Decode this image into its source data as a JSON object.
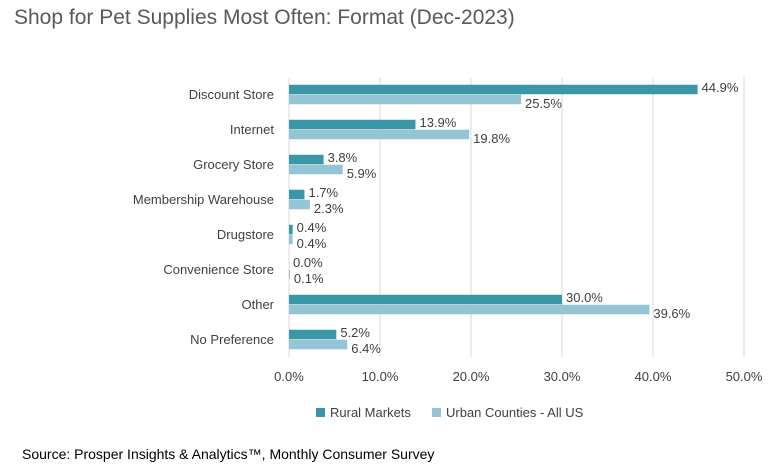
{
  "title": "Shop for Pet Supplies Most Often: Format (Dec-2023)",
  "source": "Source: Prosper Insights & Analytics™, Monthly Consumer Survey",
  "chart_data": {
    "type": "bar",
    "orientation": "horizontal",
    "title": "Shop for Pet Supplies Most Often: Format (Dec-2023)",
    "categories": [
      "Discount Store",
      "Internet",
      "Grocery Store",
      "Membership Warehouse",
      "Drugstore",
      "Convenience Store",
      "Other",
      "No Preference"
    ],
    "series": [
      {
        "name": "Rural Markets",
        "color": "#3a97a8",
        "values": [
          44.9,
          13.9,
          3.8,
          1.7,
          0.4,
          0.0,
          30.0,
          5.2
        ]
      },
      {
        "name": "Urban Counties - All US",
        "color": "#93c5d5",
        "values": [
          25.5,
          19.8,
          5.9,
          2.3,
          0.4,
          0.1,
          39.6,
          6.4
        ]
      }
    ],
    "value_labels": [
      [
        "44.9%",
        "13.9%",
        "3.8%",
        "1.7%",
        "0.4%",
        "0.0%",
        "30.0%",
        "5.2%"
      ],
      [
        "25.5%",
        "19.8%",
        "5.9%",
        "2.3%",
        "0.4%",
        "0.1%",
        "39.6%",
        "6.4%"
      ]
    ],
    "xlim": [
      0,
      50
    ],
    "xticks": [
      0,
      10,
      20,
      30,
      40,
      50
    ],
    "xtick_labels": [
      "0.0%",
      "10.0%",
      "20.0%",
      "30.0%",
      "40.0%",
      "50.0%"
    ],
    "grid": "vertical",
    "legend_position": "bottom"
  }
}
